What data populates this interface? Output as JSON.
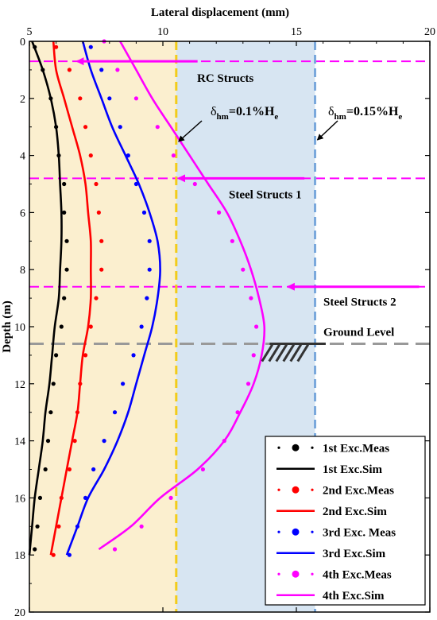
{
  "chart_data": {
    "type": "line",
    "xlabel": "Lateral displacement (mm)",
    "ylabel": "Depth (m)",
    "xlim": [
      5,
      20
    ],
    "ylim": [
      0,
      20
    ],
    "x_ticks": [
      "5",
      "10",
      "15",
      "20"
    ],
    "y_ticks": [
      "0",
      "2",
      "4",
      "6",
      "8",
      "10",
      "12",
      "14",
      "16",
      "18",
      "20"
    ],
    "y_inverted": true,
    "x_axis_position": "top",
    "grid": false,
    "legend_position": "bottom-right",
    "series": [
      {
        "name": "1st Exc.Meas",
        "kind": "measured",
        "color": "#000000",
        "points": [
          [
            5.2,
            0.2
          ],
          [
            5.5,
            1.0
          ],
          [
            5.8,
            2.0
          ],
          [
            6.0,
            3.0
          ],
          [
            6.1,
            4.0
          ],
          [
            6.3,
            5.0
          ],
          [
            6.3,
            6.0
          ],
          [
            6.4,
            7.0
          ],
          [
            6.4,
            8.0
          ],
          [
            6.3,
            9.0
          ],
          [
            6.2,
            10.0
          ],
          [
            6.0,
            11.0
          ],
          [
            5.9,
            12.0
          ],
          [
            5.8,
            13.0
          ],
          [
            5.7,
            14.0
          ],
          [
            5.6,
            15.0
          ],
          [
            5.4,
            16.0
          ],
          [
            5.3,
            17.0
          ],
          [
            5.2,
            17.8
          ]
        ]
      },
      {
        "name": "1st Exc.Sim",
        "kind": "simulated",
        "color": "#000000",
        "points": [
          [
            5.1,
            0
          ],
          [
            5.5,
            1
          ],
          [
            5.8,
            2
          ],
          [
            6.0,
            3
          ],
          [
            6.1,
            4
          ],
          [
            6.15,
            5
          ],
          [
            6.2,
            6
          ],
          [
            6.2,
            7
          ],
          [
            6.15,
            8
          ],
          [
            6.1,
            9
          ],
          [
            5.95,
            10
          ],
          [
            5.85,
            11
          ],
          [
            5.75,
            12
          ],
          [
            5.6,
            13
          ],
          [
            5.5,
            14
          ],
          [
            5.35,
            15
          ],
          [
            5.2,
            16
          ],
          [
            5.1,
            17
          ],
          [
            5.0,
            18
          ]
        ]
      },
      {
        "name": "2nd Exc.Meas",
        "kind": "measured",
        "color": "#ff0000",
        "points": [
          [
            6.0,
            0.2
          ],
          [
            6.5,
            1.0
          ],
          [
            6.9,
            2.0
          ],
          [
            7.1,
            3.0
          ],
          [
            7.3,
            4.0
          ],
          [
            7.5,
            5.0
          ],
          [
            7.6,
            6.0
          ],
          [
            7.7,
            7.0
          ],
          [
            7.7,
            8.0
          ],
          [
            7.5,
            9.0
          ],
          [
            7.3,
            10.0
          ],
          [
            7.1,
            11.0
          ],
          [
            6.9,
            12.0
          ],
          [
            6.8,
            13.0
          ],
          [
            6.7,
            14.0
          ],
          [
            6.5,
            15.0
          ],
          [
            6.2,
            16.0
          ],
          [
            6.1,
            17.0
          ],
          [
            5.9,
            18.0
          ]
        ]
      },
      {
        "name": "2nd Exc.Sim",
        "kind": "simulated",
        "color": "#ff0000",
        "points": [
          [
            5.9,
            0
          ],
          [
            6.0,
            1
          ],
          [
            6.3,
            2
          ],
          [
            6.6,
            3
          ],
          [
            6.9,
            4
          ],
          [
            7.1,
            5
          ],
          [
            7.2,
            6
          ],
          [
            7.3,
            7
          ],
          [
            7.3,
            8
          ],
          [
            7.3,
            9
          ],
          [
            7.2,
            10
          ],
          [
            7.0,
            11
          ],
          [
            6.9,
            12
          ],
          [
            6.8,
            13
          ],
          [
            6.6,
            14
          ],
          [
            6.4,
            15
          ],
          [
            6.2,
            16
          ],
          [
            6.0,
            17
          ],
          [
            5.8,
            18
          ]
        ]
      },
      {
        "name": "3rd Exc. Meas",
        "kind": "measured",
        "color": "#0000ff",
        "points": [
          [
            7.3,
            0.2
          ],
          [
            7.7,
            1.0
          ],
          [
            8.0,
            2.0
          ],
          [
            8.4,
            3.0
          ],
          [
            8.7,
            4.0
          ],
          [
            9.0,
            5.0
          ],
          [
            9.3,
            6.0
          ],
          [
            9.5,
            7.0
          ],
          [
            9.5,
            8.0
          ],
          [
            9.4,
            9.0
          ],
          [
            9.2,
            10.0
          ],
          [
            8.9,
            11.0
          ],
          [
            8.5,
            12.0
          ],
          [
            8.2,
            13.0
          ],
          [
            7.8,
            14.0
          ],
          [
            7.4,
            15.0
          ],
          [
            7.1,
            16.0
          ],
          [
            6.8,
            17.0
          ],
          [
            6.5,
            18.0
          ]
        ]
      },
      {
        "name": "3rd Exc.Sim",
        "kind": "simulated",
        "color": "#0000ff",
        "points": [
          [
            7.0,
            0
          ],
          [
            7.3,
            1
          ],
          [
            7.7,
            2
          ],
          [
            8.1,
            3
          ],
          [
            8.6,
            4
          ],
          [
            9.1,
            5
          ],
          [
            9.5,
            6
          ],
          [
            9.8,
            7
          ],
          [
            9.9,
            8
          ],
          [
            9.8,
            9
          ],
          [
            9.6,
            10
          ],
          [
            9.3,
            11
          ],
          [
            9.0,
            12
          ],
          [
            8.7,
            13
          ],
          [
            8.3,
            14
          ],
          [
            7.8,
            15
          ],
          [
            7.2,
            16
          ],
          [
            6.8,
            17
          ],
          [
            6.4,
            18
          ]
        ]
      },
      {
        "name": "4th Exc.Meas",
        "kind": "measured",
        "color": "#ff00ff",
        "points": [
          [
            7.8,
            0
          ],
          [
            8.3,
            1.0
          ],
          [
            9.0,
            2.0
          ],
          [
            9.8,
            3.0
          ],
          [
            10.4,
            4.0
          ],
          [
            11.2,
            5.0
          ],
          [
            12.1,
            6.0
          ],
          [
            12.6,
            7.0
          ],
          [
            13.0,
            8.0
          ],
          [
            13.3,
            9.0
          ],
          [
            13.5,
            10.0
          ],
          [
            13.4,
            11.0
          ],
          [
            13.2,
            12.0
          ],
          [
            12.8,
            13.0
          ],
          [
            12.3,
            14.0
          ],
          [
            11.5,
            15.0
          ],
          [
            10.3,
            16.0
          ],
          [
            9.2,
            17.0
          ],
          [
            8.2,
            17.8
          ]
        ]
      },
      {
        "name": "4th Exc.Sim",
        "kind": "simulated",
        "color": "#ff00ff",
        "points": [
          [
            8.4,
            0
          ],
          [
            9.0,
            1
          ],
          [
            9.6,
            2
          ],
          [
            10.3,
            3
          ],
          [
            11.0,
            4
          ],
          [
            11.7,
            5
          ],
          [
            12.4,
            6
          ],
          [
            12.9,
            7
          ],
          [
            13.3,
            8
          ],
          [
            13.6,
            9
          ],
          [
            13.8,
            10
          ],
          [
            13.7,
            11
          ],
          [
            13.4,
            12
          ],
          [
            12.9,
            13
          ],
          [
            12.3,
            14
          ],
          [
            11.3,
            15
          ],
          [
            9.9,
            16
          ],
          [
            8.8,
            17
          ],
          [
            7.6,
            17.8
          ]
        ]
      }
    ],
    "bands": [
      {
        "x_from": 5,
        "x_to": 10.5,
        "color": "#fbefcf"
      },
      {
        "x_from": 10.5,
        "x_to": 15.7,
        "color": "#d7e5f2"
      }
    ],
    "vlines": [
      {
        "x": 10.5,
        "color": "#f2cc1a",
        "label_base": "δ",
        "label_sub": "hm",
        "label_rest": "=0.1%H",
        "label_sub2": "e"
      },
      {
        "x": 15.7,
        "color": "#7aa8dc",
        "label_base": "δ",
        "label_sub": "hm",
        "label_rest": "=0.15%H",
        "label_sub2": "e"
      }
    ],
    "hlines": [
      {
        "y": 0.7,
        "color": "#ff00ff",
        "label": "RC Structs"
      },
      {
        "y": 4.8,
        "color": "#ff00ff",
        "label": "Steel Structs 1"
      },
      {
        "y": 8.6,
        "color": "#ff00ff",
        "label": "Steel Structs 2"
      },
      {
        "y": 10.6,
        "color": "#999999",
        "label": "Ground Level"
      }
    ]
  }
}
